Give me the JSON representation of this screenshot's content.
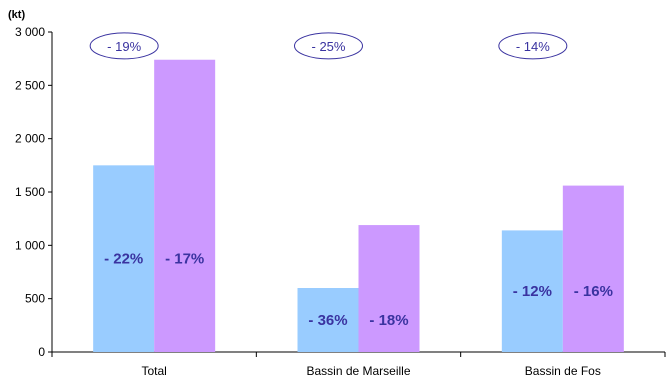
{
  "chart_data": {
    "type": "bar",
    "unit_label": "(kt)",
    "categories": [
      "Total",
      "Bassin de Marseille",
      "Bassin de Fos"
    ],
    "series": [
      {
        "values": [
          1750,
          600,
          1140
        ],
        "color": "#99ccff",
        "change_labels": [
          "- 22%",
          "- 36%",
          "- 12%"
        ]
      },
      {
        "values": [
          2740,
          1190,
          1560
        ],
        "color": "#cc99ff",
        "change_labels": [
          "- 17%",
          "- 18%",
          "- 16%"
        ]
      }
    ],
    "total_change_labels": [
      "- 19%",
      "- 25%",
      "- 14%"
    ],
    "ylim": [
      0,
      3000
    ],
    "yticks": [
      0,
      500,
      1000,
      1500,
      2000,
      2500,
      3000
    ],
    "ytick_labels": [
      "0",
      "500",
      "1 000",
      "1 500",
      "2 000",
      "2 500",
      "3 000"
    ],
    "grid": false,
    "legend": "none"
  }
}
